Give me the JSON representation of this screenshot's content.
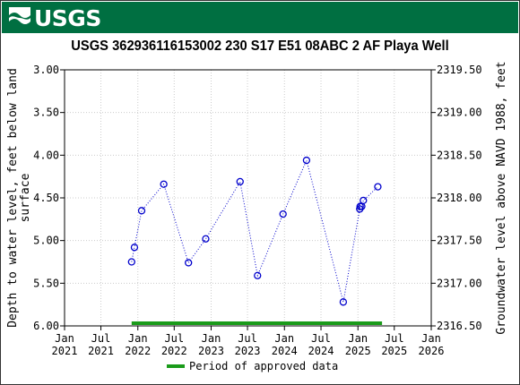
{
  "logo": {
    "text": "USGS"
  },
  "title": "USGS 362936116153002 230  S17 E51 08ABC 2    AF Playa Well",
  "legend_label": "Period of approved data",
  "colors": {
    "banner": "#006f41",
    "data": "#0000cc",
    "approved": "#1a9b1a"
  },
  "chart_data": {
    "type": "scatter",
    "title": "USGS 362936116153002 230  S17 E51 08ABC 2    AF Playa Well",
    "ylabel": "Depth to water level, feet below land surface",
    "y2label": "Groundwater level above NAVD 1988, feet",
    "ylim": [
      6.0,
      3.0
    ],
    "y2lim": [
      2316.5,
      2319.5
    ],
    "xlim": [
      "2021-01-01",
      "2026-01-01"
    ],
    "y_ticks": [
      "3.00",
      "3.50",
      "4.00",
      "4.50",
      "5.00",
      "5.50",
      "6.00"
    ],
    "y2_ticks": [
      "2319.50",
      "2319.00",
      "2318.50",
      "2318.00",
      "2317.50",
      "2317.00",
      "2316.50"
    ],
    "x_ticks": [
      {
        "date": "2021-01-01",
        "label": [
          "Jan",
          "2021"
        ]
      },
      {
        "date": "2021-07-01",
        "label": [
          "Jul",
          "2021"
        ]
      },
      {
        "date": "2022-01-01",
        "label": [
          "Jan",
          "2022"
        ]
      },
      {
        "date": "2022-07-01",
        "label": [
          "Jul",
          "2022"
        ]
      },
      {
        "date": "2023-01-01",
        "label": [
          "Jan",
          "2023"
        ]
      },
      {
        "date": "2023-07-01",
        "label": [
          "Jul",
          "2023"
        ]
      },
      {
        "date": "2024-01-01",
        "label": [
          "Jan",
          "2024"
        ]
      },
      {
        "date": "2024-07-01",
        "label": [
          "Jul",
          "2024"
        ]
      },
      {
        "date": "2025-01-01",
        "label": [
          "Jan",
          "2025"
        ]
      },
      {
        "date": "2025-07-01",
        "label": [
          "Jul",
          "2025"
        ]
      },
      {
        "date": "2026-01-01",
        "label": [
          "Jan",
          "2026"
        ]
      }
    ],
    "series": [
      {
        "points": [
          {
            "x": "2021-12-01",
            "y": 5.25
          },
          {
            "x": "2021-12-15",
            "y": 5.08
          },
          {
            "x": "2022-01-20",
            "y": 4.65
          },
          {
            "x": "2022-05-10",
            "y": 4.34
          },
          {
            "x": "2022-09-10",
            "y": 5.26
          },
          {
            "x": "2022-12-05",
            "y": 4.98
          },
          {
            "x": "2023-05-25",
            "y": 4.31
          },
          {
            "x": "2023-08-20",
            "y": 5.41
          },
          {
            "x": "2023-12-25",
            "y": 4.69
          },
          {
            "x": "2024-04-20",
            "y": 4.06
          },
          {
            "x": "2024-10-20",
            "y": 5.72
          },
          {
            "x": "2025-01-10",
            "y": 4.63
          },
          {
            "x": "2025-01-12",
            "y": 4.6
          },
          {
            "x": "2025-01-20",
            "y": 4.6
          },
          {
            "x": "2025-01-28",
            "y": 4.53
          },
          {
            "x": "2025-04-10",
            "y": 4.37
          }
        ]
      }
    ],
    "approved_period": {
      "start": "2021-12-01",
      "end": "2025-05-01"
    },
    "grid": true
  }
}
